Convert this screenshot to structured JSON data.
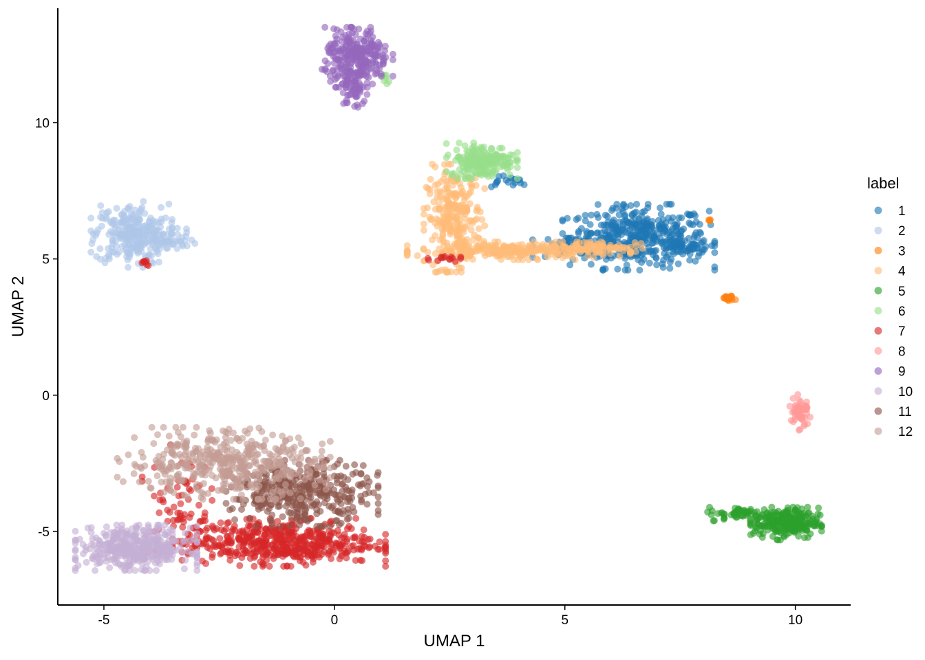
{
  "chart_data": {
    "type": "scatter",
    "title": "",
    "xlabel": "UMAP 1",
    "ylabel": "UMAP 2",
    "xlim": [
      -6.0,
      11.2
    ],
    "ylim": [
      -7.7,
      14.2
    ],
    "x_ticks": [
      -5,
      0,
      5,
      10
    ],
    "x_tick_labels": [
      "-5",
      "0",
      "5",
      "10"
    ],
    "y_ticks": [
      -5,
      0,
      5,
      10
    ],
    "y_tick_labels": [
      "-5",
      "0",
      "5",
      "10"
    ],
    "grid": false,
    "legend": {
      "title": "label",
      "position": "right",
      "entries": [
        "1",
        "2",
        "3",
        "4",
        "5",
        "6",
        "7",
        "8",
        "9",
        "10",
        "11",
        "12"
      ]
    },
    "colors": {
      "1": "#1f77b4",
      "2": "#aec7e8",
      "3": "#ff7f0e",
      "4": "#ffbb78",
      "5": "#2ca02c",
      "6": "#98df8a",
      "7": "#d62728",
      "8": "#ff9896",
      "9": "#9467bd",
      "10": "#c5b0d5",
      "11": "#8c564b",
      "12": "#c49c94"
    },
    "series": [
      {
        "name": "1",
        "clusters": [
          {
            "center": [
              6.6,
              5.8
            ],
            "spread": [
              0.75,
              0.55
            ],
            "n": 420
          },
          {
            "center": [
              5.4,
              5.5
            ],
            "spread": [
              0.5,
              0.2
            ],
            "n": 80
          },
          {
            "center": [
              7.7,
              5.4
            ],
            "spread": [
              0.25,
              0.1
            ],
            "n": 40
          },
          {
            "center": [
              3.7,
              7.85
            ],
            "spread": [
              0.25,
              0.12
            ],
            "n": 18
          }
        ]
      },
      {
        "name": "2",
        "clusters": [
          {
            "center": [
              -4.4,
              5.9
            ],
            "spread": [
              0.4,
              0.55
            ],
            "n": 260
          },
          {
            "center": [
              -3.7,
              5.7
            ],
            "spread": [
              0.35,
              0.2
            ],
            "n": 60
          }
        ]
      },
      {
        "name": "3",
        "clusters": [
          {
            "center": [
              8.55,
              3.55
            ],
            "spread": [
              0.07,
              0.05
            ],
            "n": 22
          },
          {
            "center": [
              8.15,
              6.4
            ],
            "spread": [
              0.05,
              0.04
            ],
            "n": 4
          }
        ]
      },
      {
        "name": "4",
        "clusters": [
          {
            "center": [
              2.6,
              6.5
            ],
            "spread": [
              0.3,
              0.9
            ],
            "n": 260
          },
          {
            "center": [
              4.0,
              5.3
            ],
            "spread": [
              1.1,
              0.15
            ],
            "n": 260
          },
          {
            "center": [
              5.6,
              5.45
            ],
            "spread": [
              0.5,
              0.1
            ],
            "n": 60
          }
        ]
      },
      {
        "name": "5",
        "clusters": [
          {
            "center": [
              9.8,
              -4.7
            ],
            "spread": [
              0.35,
              0.28
            ],
            "n": 240
          },
          {
            "center": [
              8.9,
              -4.35
            ],
            "spread": [
              0.4,
              0.12
            ],
            "n": 60
          }
        ]
      },
      {
        "name": "6",
        "clusters": [
          {
            "center": [
              3.2,
              8.6
            ],
            "spread": [
              0.35,
              0.3
            ],
            "n": 200
          },
          {
            "center": [
              1.1,
              11.6
            ],
            "spread": [
              0.04,
              0.08
            ],
            "n": 8
          }
        ]
      },
      {
        "name": "7",
        "clusters": [
          {
            "center": [
              -1.2,
              -5.4
            ],
            "spread": [
              1.05,
              0.4
            ],
            "n": 520
          },
          {
            "center": [
              -3.4,
              -3.8
            ],
            "spread": [
              0.35,
              0.9
            ],
            "n": 60
          },
          {
            "center": [
              2.3,
              5.02
            ],
            "spread": [
              0.2,
              0.06
            ],
            "n": 14
          },
          {
            "center": [
              -4.1,
              4.85
            ],
            "spread": [
              0.06,
              0.06
            ],
            "n": 8
          }
        ]
      },
      {
        "name": "8",
        "clusters": [
          {
            "center": [
              10.1,
              -0.6
            ],
            "spread": [
              0.1,
              0.35
            ],
            "n": 50
          }
        ]
      },
      {
        "name": "9",
        "clusters": [
          {
            "center": [
              0.5,
              12.4
            ],
            "spread": [
              0.35,
              0.5
            ],
            "n": 260
          },
          {
            "center": [
              0.4,
              11.3
            ],
            "spread": [
              0.14,
              0.4
            ],
            "n": 70
          }
        ]
      },
      {
        "name": "10",
        "clusters": [
          {
            "center": [
              -4.3,
              -5.6
            ],
            "spread": [
              0.6,
              0.38
            ],
            "n": 420
          }
        ]
      },
      {
        "name": "11",
        "clusters": [
          {
            "center": [
              -0.7,
              -3.6
            ],
            "spread": [
              0.75,
              0.55
            ],
            "n": 380
          }
        ]
      },
      {
        "name": "12",
        "clusters": [
          {
            "center": [
              -2.4,
              -2.5
            ],
            "spread": [
              1.05,
              0.6
            ],
            "n": 440
          }
        ]
      }
    ]
  }
}
